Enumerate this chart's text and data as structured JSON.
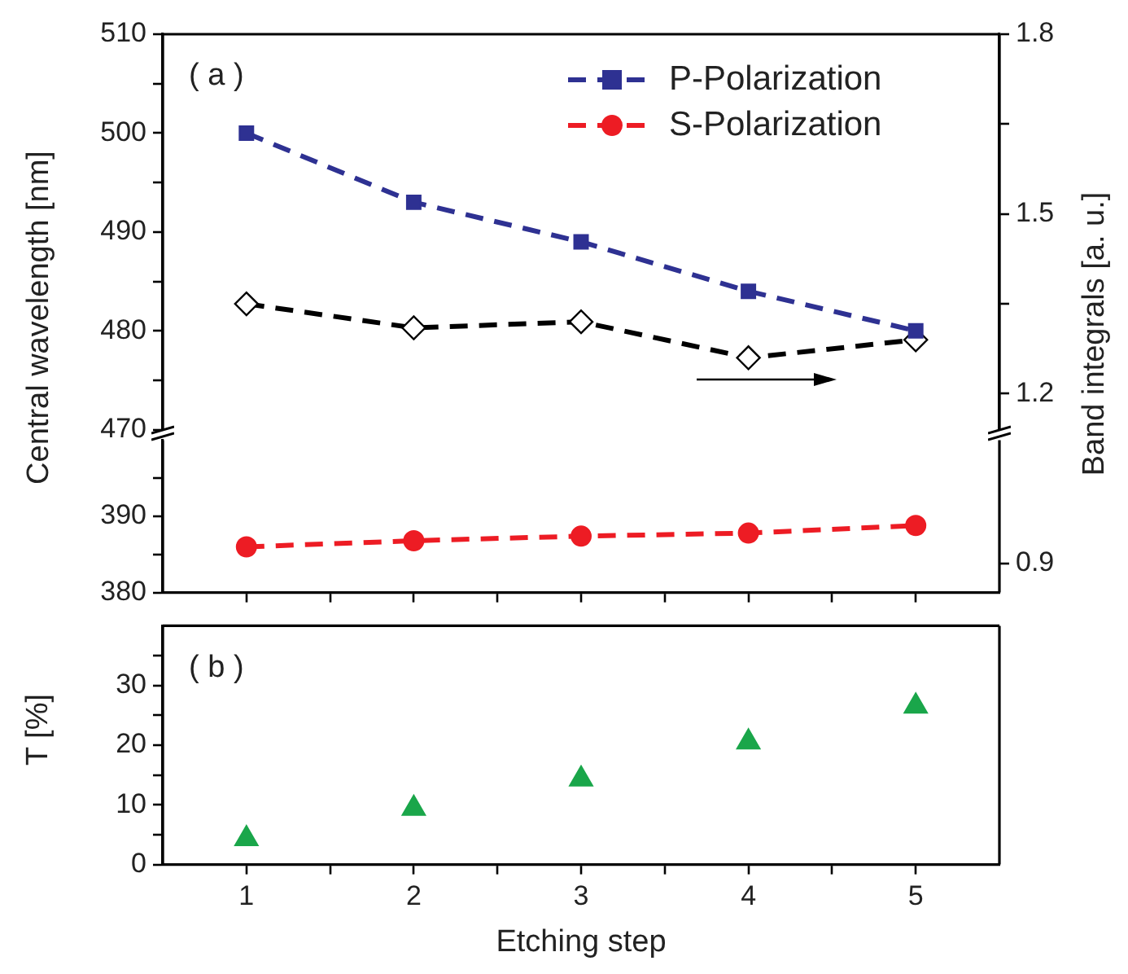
{
  "chart_data": [
    {
      "type": "line",
      "x": [
        1,
        2,
        3,
        4,
        5
      ],
      "xlim": [
        0.5,
        5.5
      ],
      "ylabel": "Central wavelength [nm]",
      "y2label": "Band integrals [a. u.]",
      "ylim": [
        470,
        510
      ],
      "yticks": [
        470,
        {
          "value": 475,
          "label": null
        },
        480,
        {
          "value": 485,
          "label": null
        },
        490,
        {
          "value": 495,
          "label": null
        },
        500,
        {
          "value": 505,
          "label": null
        },
        510
      ],
      "y2lim": [
        1.14,
        1.8
      ],
      "y2ticks": [
        1.2,
        {
          "value": 1.35,
          "label": null
        },
        1.5,
        {
          "value": 1.65,
          "label": null
        },
        1.8
      ],
      "legend": "top right",
      "grid": false,
      "line_style": "dashed",
      "tick_labels": "y",
      "annotations": [
        "( a )"
      ],
      "series": [
        {
          "name": "P-Polarization",
          "color": "#2e3192",
          "marker": "square",
          "values": [
            500,
            493,
            489,
            484,
            480
          ]
        },
        {
          "color": "#000000",
          "marker": "diamond",
          "axis": "y2",
          "values": [
            1.35,
            1.31,
            1.32,
            1.26,
            1.29
          ]
        }
      ]
    },
    {
      "type": "line",
      "x": [
        1,
        2,
        3,
        4,
        5
      ],
      "xlim": [
        0.5,
        5.5
      ],
      "xticks": [
        1,
        {
          "value": 1.5,
          "label": null
        },
        2,
        {
          "value": 2.5,
          "label": null
        },
        3,
        {
          "value": 3.5,
          "label": null
        },
        4,
        {
          "value": 4.5,
          "label": null
        },
        5
      ],
      "ylim": [
        380,
        400
      ],
      "yticks": [
        380,
        {
          "value": 385,
          "label": null
        },
        390,
        {
          "value": 395,
          "label": null
        }
      ],
      "grid": false,
      "line_style": "dashed",
      "tick_labels": "y",
      "annotations": [
        "0.9"
      ],
      "series": [
        {
          "name": "S-Polarization",
          "color": "#ed1c24",
          "marker": "circle",
          "values": [
            386,
            386.8,
            387.4,
            387.8,
            388.8
          ]
        }
      ]
    },
    {
      "type": "scatter",
      "x": [
        1,
        2,
        3,
        4,
        5
      ],
      "xlim": [
        0.5,
        5.5
      ],
      "xticks": [
        1,
        {
          "value": 1.5,
          "label": null
        },
        2,
        {
          "value": 2.5,
          "label": null
        },
        3,
        {
          "value": 3.5,
          "label": null
        },
        4,
        {
          "value": 4.5,
          "label": null
        },
        5
      ],
      "xlabel": "Etching step",
      "ylabel": "T [%]",
      "ylim": [
        0,
        40
      ],
      "yticks": [
        0,
        {
          "value": 5,
          "label": null
        },
        10,
        {
          "value": 15,
          "label": null
        },
        20,
        {
          "value": 25,
          "label": null
        },
        30,
        {
          "value": 35,
          "label": null
        }
      ],
      "marker": "triangle",
      "grid": false,
      "annotations": [
        "( b )"
      ],
      "series": [
        {
          "color": "#1aa64a",
          "values": [
            4.3,
            9.4,
            14.3,
            20.5,
            26.5
          ]
        }
      ]
    }
  ]
}
